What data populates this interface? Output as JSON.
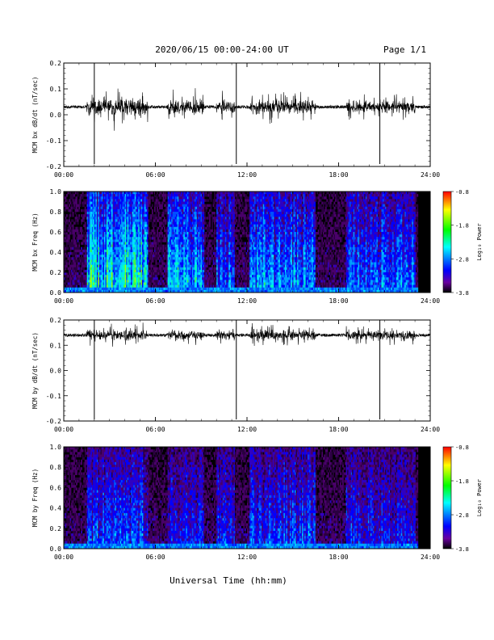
{
  "header": {
    "title": "2020/06/15  00:00-24:00 UT",
    "page": "Page 1/1"
  },
  "footer": {
    "xlabel": "Universal Time (hh:mm)"
  },
  "time_ticks": [
    "00:00",
    "06:00",
    "12:00",
    "18:00",
    "24:00"
  ],
  "colorbar": {
    "label": "Log₁₀ Power",
    "ticks": [
      "-0.8",
      "-1.8",
      "-2.8",
      "-3.8"
    ],
    "colors": [
      "#ff0000",
      "#ffff00",
      "#00ff00",
      "#00ffff",
      "#0000ff",
      "#000000"
    ]
  },
  "chart_data": [
    {
      "type": "line",
      "ylabel": "MCM bx dB/dt (nT/sec)",
      "xlim": [
        0,
        24
      ],
      "ylim": [
        -0.2,
        0.2
      ],
      "yticks": [
        "0.2",
        "0.1",
        "0.0",
        "-0.1",
        "-0.2"
      ],
      "baseline": 0.03,
      "spikes_hours": [
        2.0,
        11.3,
        20.7
      ],
      "bursts": [
        {
          "start": 1.5,
          "end": 5.5,
          "amp": 0.1
        },
        {
          "start": 6.8,
          "end": 9.2,
          "amp": 0.08
        },
        {
          "start": 10.0,
          "end": 11.2,
          "amp": 0.06
        },
        {
          "start": 12.2,
          "end": 16.5,
          "amp": 0.07
        },
        {
          "start": 18.5,
          "end": 23.0,
          "amp": 0.06
        }
      ]
    },
    {
      "type": "heatmap",
      "ylabel": "MCM bx Freq (Hz)",
      "xlim": [
        0,
        24
      ],
      "ylim": [
        0.0,
        1.0
      ],
      "yticks": [
        "1.0",
        "0.8",
        "0.6",
        "0.4",
        "0.2",
        "0.0"
      ],
      "zlim": [
        -3.8,
        -0.8
      ],
      "zlabel": "Log₁₀ Power"
    },
    {
      "type": "line",
      "ylabel": "MCM by dB/dt (nT/sec)",
      "xlim": [
        0,
        24
      ],
      "ylim": [
        -0.2,
        0.2
      ],
      "yticks": [
        "0.2",
        "0.1",
        "0.0",
        "-0.1",
        "-0.2"
      ],
      "baseline": 0.14,
      "spikes_hours": [
        2.0,
        11.3,
        20.7
      ],
      "bursts": [
        {
          "start": 1.5,
          "end": 5.5,
          "amp": 0.05
        },
        {
          "start": 6.8,
          "end": 9.2,
          "amp": 0.04
        },
        {
          "start": 10.0,
          "end": 11.2,
          "amp": 0.04
        },
        {
          "start": 12.2,
          "end": 16.5,
          "amp": 0.05
        },
        {
          "start": 18.5,
          "end": 23.0,
          "amp": 0.04
        }
      ]
    },
    {
      "type": "heatmap",
      "ylabel": "MCM by Freq (Hz)",
      "xlim": [
        0,
        24
      ],
      "ylim": [
        0.0,
        1.0
      ],
      "yticks": [
        "1.0",
        "0.8",
        "0.6",
        "0.4",
        "0.2",
        "0.0"
      ],
      "zlim": [
        -3.8,
        -0.8
      ],
      "zlabel": "Log₁₀ Power"
    }
  ]
}
